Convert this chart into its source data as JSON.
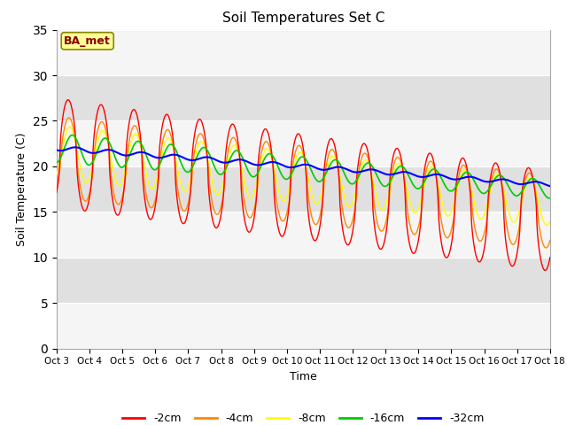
{
  "title": "Soil Temperatures Set C",
  "xlabel": "Time",
  "ylabel": "Soil Temperature (C)",
  "ylim": [
    0,
    35
  ],
  "yticks": [
    0,
    5,
    10,
    15,
    20,
    25,
    30,
    35
  ],
  "xtick_labels": [
    "Oct 3",
    "Oct 4",
    "Oct 5",
    "Oct 6",
    "Oct 7",
    "Oct 8",
    "Oct 9",
    "Oct 10",
    "Oct 11",
    "Oct 12",
    "Oct 13",
    "Oct 14",
    "Oct 15",
    "Oct 16",
    "Oct 17",
    "Oct 18"
  ],
  "colors": {
    "-2cm": "#ff0000",
    "-4cm": "#ff8800",
    "-8cm": "#ffff00",
    "-16cm": "#00cc00",
    "-32cm": "#0000ff"
  },
  "plot_bg": "#ebebeb",
  "fig_bg": "#ffffff",
  "annotation_text": "BA_met",
  "annotation_bg": "#ffff99",
  "annotation_border": "#888800",
  "grid_color": "#ffffff",
  "band_light": "#f5f5f5",
  "band_dark": "#e0e0e0"
}
